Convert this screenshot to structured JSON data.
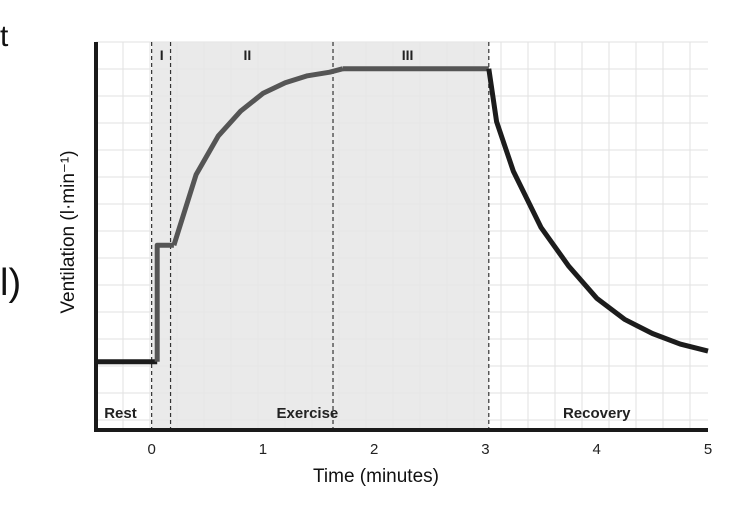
{
  "fragments": {
    "top": "t",
    "middle": "l)"
  },
  "colors": {
    "exercise_shade": "#e6e6e6",
    "grid": "#e2e2e2",
    "curve_exercise": "#555555",
    "curve_other": "#1c1c1c",
    "axis": "#1a1a1a"
  },
  "chart_data": {
    "type": "line",
    "title": "",
    "xlabel": "Time (minutes)",
    "ylabel": "Ventilation (l·min⁻¹)",
    "xlim": [
      -0.5,
      5
    ],
    "ylim": [
      0,
      1
    ],
    "y_tick_labels": false,
    "grid": true,
    "x_ticks": [
      {
        "value": 0,
        "label": "0"
      },
      {
        "value": 1,
        "label": "1"
      },
      {
        "value": 2,
        "label": "2"
      },
      {
        "value": 3,
        "label": "3"
      },
      {
        "value": 4,
        "label": "4"
      },
      {
        "value": 5,
        "label": "5"
      }
    ],
    "phase_boundaries": [
      0,
      0.17,
      1.63,
      3.03
    ],
    "phases": [
      {
        "label": "I",
        "x": 0.09
      },
      {
        "label": "II",
        "x": 0.86
      },
      {
        "label": "III",
        "x": 2.3
      }
    ],
    "regions": [
      {
        "label": "Rest",
        "x": -0.28
      },
      {
        "label": "Exercise",
        "x": 1.4
      },
      {
        "label": "Recovery",
        "x": 4.0
      }
    ],
    "shaded_region": [
      0,
      3.03
    ],
    "series": [
      {
        "segment": "rest",
        "x": [
          -0.5,
          0.05
        ],
        "y": [
          0.1,
          0.1
        ]
      },
      {
        "segment": "phase-I",
        "x": [
          0.05,
          0.05,
          0.2
        ],
        "y": [
          0.1,
          0.43,
          0.43
        ]
      },
      {
        "segment": "phase-II",
        "x": [
          0.2,
          0.4,
          0.6,
          0.8,
          1.0,
          1.2,
          1.4,
          1.6,
          1.72
        ],
        "y": [
          0.43,
          0.63,
          0.74,
          0.81,
          0.86,
          0.89,
          0.91,
          0.92,
          0.93
        ]
      },
      {
        "segment": "phase-III",
        "x": [
          1.72,
          3.03
        ],
        "y": [
          0.93,
          0.93
        ]
      },
      {
        "segment": "recovery",
        "x": [
          3.03,
          3.1,
          3.25,
          3.5,
          3.75,
          4.0,
          4.25,
          4.5,
          4.75,
          5.0
        ],
        "y": [
          0.93,
          0.78,
          0.64,
          0.48,
          0.37,
          0.28,
          0.22,
          0.18,
          0.15,
          0.13
        ]
      }
    ]
  }
}
